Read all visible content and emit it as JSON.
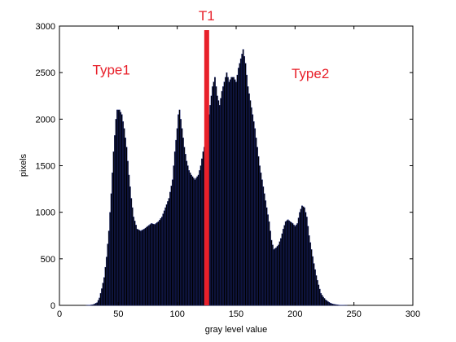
{
  "chart_data": {
    "type": "bar",
    "title": "",
    "xlabel": "gray level value",
    "ylabel": "pixels",
    "xlim": [
      0,
      300
    ],
    "ylim": [
      0,
      3000
    ],
    "x_ticks": [
      0,
      50,
      100,
      150,
      200,
      250,
      300
    ],
    "y_ticks": [
      0,
      500,
      1000,
      1500,
      2000,
      2500,
      3000
    ],
    "grid": false,
    "legend": "none",
    "bar_color": "#000000",
    "bar_edge_color": "#1c2a8a",
    "threshold": {
      "label": "T1",
      "x": 125,
      "color": "#e8202a"
    },
    "annotations": [
      {
        "text": "Type1",
        "x": 28,
        "y": 2480,
        "color": "#e8202a"
      },
      {
        "text": "Type2",
        "x": 197,
        "y": 2440,
        "color": "#e8202a"
      }
    ],
    "keypoints": [
      [
        0,
        0
      ],
      [
        22,
        0
      ],
      [
        26,
        3
      ],
      [
        29,
        10
      ],
      [
        32,
        30
      ],
      [
        34,
        80
      ],
      [
        36,
        180
      ],
      [
        38,
        300
      ],
      [
        40,
        520
      ],
      [
        42,
        800
      ],
      [
        44,
        1200
      ],
      [
        46,
        1650
      ],
      [
        48,
        2000
      ],
      [
        49,
        2100
      ],
      [
        51,
        2100
      ],
      [
        53,
        2050
      ],
      [
        55,
        1900
      ],
      [
        57,
        1700
      ],
      [
        59,
        1400
      ],
      [
        61,
        1150
      ],
      [
        63,
        950
      ],
      [
        66,
        820
      ],
      [
        69,
        800
      ],
      [
        72,
        820
      ],
      [
        75,
        850
      ],
      [
        78,
        880
      ],
      [
        81,
        870
      ],
      [
        84,
        900
      ],
      [
        87,
        950
      ],
      [
        90,
        1050
      ],
      [
        93,
        1150
      ],
      [
        96,
        1350
      ],
      [
        98,
        1650
      ],
      [
        100,
        1900
      ],
      [
        101,
        2050
      ],
      [
        102,
        2100
      ],
      [
        104,
        1900
      ],
      [
        106,
        1700
      ],
      [
        108,
        1550
      ],
      [
        110,
        1450
      ],
      [
        112,
        1400
      ],
      [
        115,
        1350
      ],
      [
        118,
        1400
      ],
      [
        120,
        1500
      ],
      [
        122,
        1650
      ],
      [
        124,
        1750
      ],
      [
        126,
        1950
      ],
      [
        128,
        2150
      ],
      [
        130,
        2350
      ],
      [
        132,
        2450
      ],
      [
        134,
        2250
      ],
      [
        136,
        2150
      ],
      [
        138,
        2300
      ],
      [
        140,
        2400
      ],
      [
        142,
        2500
      ],
      [
        144,
        2400
      ],
      [
        146,
        2450
      ],
      [
        148,
        2450
      ],
      [
        150,
        2400
      ],
      [
        152,
        2550
      ],
      [
        154,
        2650
      ],
      [
        156,
        2750
      ],
      [
        158,
        2600
      ],
      [
        160,
        2350
      ],
      [
        162,
        2200
      ],
      [
        164,
        2050
      ],
      [
        166,
        1900
      ],
      [
        168,
        1700
      ],
      [
        170,
        1500
      ],
      [
        172,
        1350
      ],
      [
        174,
        1200
      ],
      [
        176,
        1050
      ],
      [
        178,
        900
      ],
      [
        180,
        700
      ],
      [
        182,
        600
      ],
      [
        184,
        620
      ],
      [
        186,
        650
      ],
      [
        188,
        720
      ],
      [
        190,
        820
      ],
      [
        192,
        900
      ],
      [
        194,
        920
      ],
      [
        196,
        900
      ],
      [
        198,
        880
      ],
      [
        200,
        850
      ],
      [
        202,
        880
      ],
      [
        204,
        1000
      ],
      [
        206,
        1070
      ],
      [
        208,
        1050
      ],
      [
        210,
        950
      ],
      [
        212,
        750
      ],
      [
        214,
        600
      ],
      [
        216,
        450
      ],
      [
        218,
        320
      ],
      [
        220,
        220
      ],
      [
        222,
        130
      ],
      [
        224,
        90
      ],
      [
        226,
        60
      ],
      [
        228,
        40
      ],
      [
        230,
        25
      ],
      [
        232,
        15
      ],
      [
        234,
        10
      ],
      [
        236,
        6
      ],
      [
        238,
        3
      ],
      [
        240,
        2
      ],
      [
        245,
        0
      ],
      [
        255,
        0
      ]
    ]
  }
}
